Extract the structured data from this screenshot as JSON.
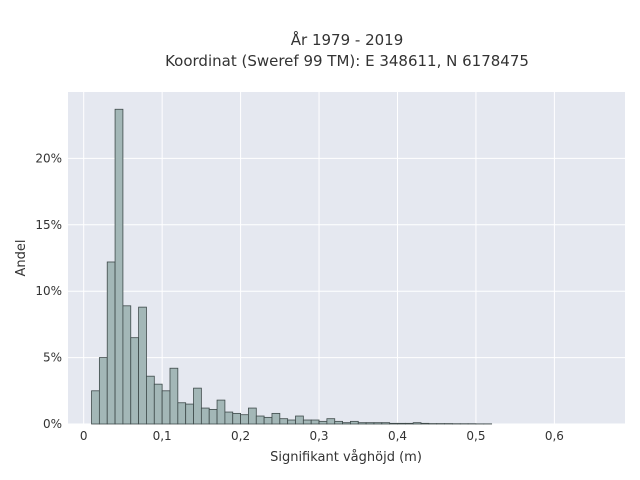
{
  "chart_data": {
    "type": "bar",
    "title_line1": "År 1979 - 2019",
    "title_line2": "Koordinat (Sweref 99 TM): E 348611, N 6178475",
    "xlabel": "Signifikant våghöjd (m)",
    "ylabel": "Andel",
    "xlim": [
      -0.02,
      0.69
    ],
    "ylim": [
      0,
      0.25
    ],
    "bin_width": 0.01,
    "bin_start": 0.01,
    "x_ticks": [
      {
        "value": 0,
        "label": "0"
      },
      {
        "value": 0.1,
        "label": "0,1"
      },
      {
        "value": 0.2,
        "label": "0,2"
      },
      {
        "value": 0.3,
        "label": "0,3"
      },
      {
        "value": 0.4,
        "label": "0,4"
      },
      {
        "value": 0.5,
        "label": "0,5"
      },
      {
        "value": 0.6,
        "label": "0,6"
      }
    ],
    "y_ticks": [
      {
        "value": 0,
        "label": "0%"
      },
      {
        "value": 0.05,
        "label": "5%"
      },
      {
        "value": 0.1,
        "label": "10%"
      },
      {
        "value": 0.15,
        "label": "15%"
      },
      {
        "value": 0.2,
        "label": "20%"
      }
    ],
    "values": [
      0.025,
      0.05,
      0.122,
      0.237,
      0.089,
      0.065,
      0.088,
      0.036,
      0.03,
      0.025,
      0.042,
      0.016,
      0.015,
      0.027,
      0.012,
      0.011,
      0.018,
      0.009,
      0.008,
      0.007,
      0.012,
      0.006,
      0.005,
      0.008,
      0.004,
      0.003,
      0.006,
      0.003,
      0.003,
      0.002,
      0.004,
      0.002,
      0.001,
      0.002,
      0.001,
      0.001,
      0.001,
      0.001,
      0.0005,
      0.0005,
      0.0005,
      0.001,
      0.0005,
      0.0003,
      0.0003,
      0.0003,
      0.0002,
      0.0002,
      0.0002,
      0.0001,
      0.0001
    ]
  },
  "colors": {
    "plot_bg": "#e5e8f0",
    "bar_fill": "#a3b7b7",
    "bar_edge": "#3e4a4a",
    "grid": "#ffffff",
    "text": "#333333"
  }
}
